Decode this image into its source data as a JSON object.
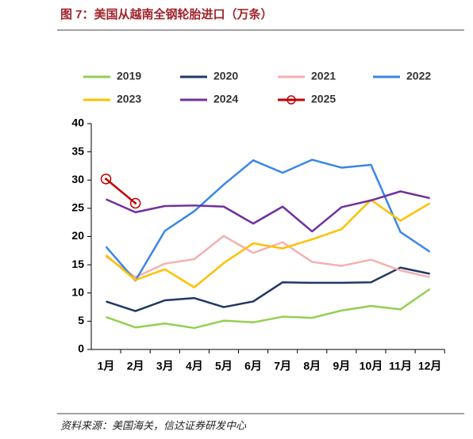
{
  "chart_data": {
    "type": "line",
    "title": "图 7：美国从越南全钢轮胎进口（万条）",
    "source": "资料来源：美国海关，信达证券研发中心",
    "categories": [
      "1月",
      "2月",
      "3月",
      "4月",
      "5月",
      "6月",
      "7月",
      "8月",
      "9月",
      "10月",
      "11月",
      "12月"
    ],
    "series": [
      {
        "name": "2019",
        "color": "#92d050",
        "values": [
          5.75,
          3.9,
          4.6,
          3.8,
          5.1,
          4.8,
          5.8,
          5.6,
          6.9,
          7.7,
          7.1,
          10.7
        ]
      },
      {
        "name": "2020",
        "color": "#203864",
        "values": [
          8.5,
          6.8,
          8.7,
          9.1,
          7.5,
          8.5,
          11.9,
          11.8,
          11.8,
          11.9,
          14.5,
          13.4
        ]
      },
      {
        "name": "2021",
        "color": "#f4b0b0",
        "values": [
          16.5,
          12.8,
          15.2,
          16.0,
          20.1,
          17.1,
          19.0,
          15.5,
          14.8,
          15.9,
          14.0,
          12.8
        ]
      },
      {
        "name": "2022",
        "color": "#3a86e8",
        "values": [
          18.2,
          12.2,
          21.0,
          24.5,
          29.2,
          33.5,
          31.3,
          33.6,
          32.2,
          32.7,
          20.8,
          17.3
        ]
      },
      {
        "name": "2023",
        "color": "#ffc000",
        "values": [
          16.7,
          12.3,
          14.2,
          11.0,
          15.3,
          18.8,
          17.9,
          19.5,
          21.3,
          26.5,
          22.8,
          25.9
        ]
      },
      {
        "name": "2024",
        "color": "#7030a0",
        "values": [
          26.6,
          24.3,
          25.4,
          25.5,
          25.3,
          22.3,
          25.3,
          20.9,
          25.2,
          26.4,
          28.0,
          26.8
        ]
      },
      {
        "name": "2025",
        "color": "#c00000",
        "marker": "circle",
        "values": [
          30.2,
          25.9,
          null,
          null,
          null,
          null,
          null,
          null,
          null,
          null,
          null,
          null
        ]
      }
    ],
    "ylim": [
      0,
      40
    ],
    "yticks": [
      0,
      5,
      10,
      15,
      20,
      25,
      30,
      35,
      40
    ],
    "grid": false,
    "legend": "top"
  }
}
